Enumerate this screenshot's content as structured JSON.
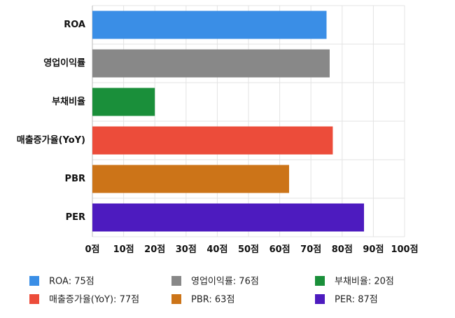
{
  "chart_data": {
    "type": "bar",
    "orientation": "horizontal",
    "categories": [
      "ROA",
      "영업이익률",
      "부채비율",
      "매출증가율(YoY)",
      "PBR",
      "PER"
    ],
    "values": [
      75,
      76,
      20,
      77,
      63,
      87
    ],
    "colors": [
      "#3a8ee6",
      "#888888",
      "#1a8f3a",
      "#ec4c3a",
      "#cc7418",
      "#4d1bbf"
    ],
    "xlim": [
      0,
      100
    ],
    "x_ticks": [
      0,
      10,
      20,
      30,
      40,
      50,
      60,
      70,
      80,
      90,
      100
    ],
    "tick_suffix": "점",
    "grid": true,
    "legend_position": "bottom",
    "legend_entries": [
      "ROA: 75점",
      "영업이익률: 76점",
      "부채비율: 20점",
      "매출증가율(YoY): 77점",
      "PBR: 63점",
      "PER: 87점"
    ]
  }
}
